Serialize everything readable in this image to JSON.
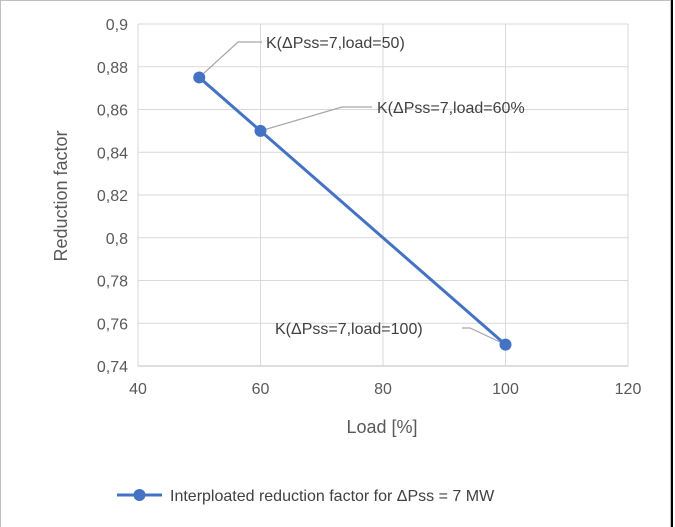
{
  "chart_data": {
    "type": "line",
    "title": "",
    "xlabel": "Load [%]",
    "ylabel": "Reduction factor",
    "xlim": [
      40,
      120
    ],
    "ylim": [
      0.74,
      0.9
    ],
    "x_ticks": [
      40,
      60,
      80,
      100,
      120
    ],
    "x_tick_labels": [
      "40",
      "60",
      "80",
      "100",
      "120"
    ],
    "y_ticks": [
      0.74,
      0.76,
      0.78,
      0.8,
      0.82,
      0.84,
      0.86,
      0.88,
      0.9
    ],
    "y_tick_labels": [
      "0,74",
      "0,76",
      "0,78",
      "0,8",
      "0,82",
      "0,84",
      "0,86",
      "0,88",
      "0,9"
    ],
    "grid": true,
    "legend_position": "bottom",
    "series": [
      {
        "name": "Interploated reduction factor for ΔPss = 7 MW",
        "color": "#4472c4",
        "x": [
          50,
          60,
          100
        ],
        "y": [
          0.875,
          0.85,
          0.75
        ]
      }
    ],
    "annotations": [
      {
        "text": "K(ΔPss=7,load=50)"
      },
      {
        "text": "K(ΔPss=7,load=60%"
      },
      {
        "text": "K(ΔPss=7,load=100)"
      }
    ]
  }
}
